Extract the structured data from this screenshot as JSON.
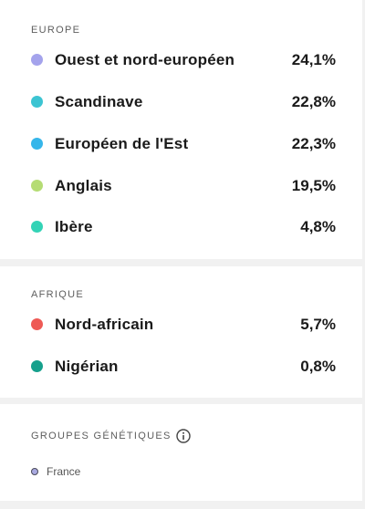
{
  "europe": {
    "title": "EUROPE",
    "items": [
      {
        "label": "Ouest et nord-européen",
        "percent": "24,1%",
        "color": "#a4a3ec"
      },
      {
        "label": "Scandinave",
        "percent": "22,8%",
        "color": "#3cc4d2"
      },
      {
        "label": "Européen de l'Est",
        "percent": "22,3%",
        "color": "#35b6ea"
      },
      {
        "label": "Anglais",
        "percent": "19,5%",
        "color": "#b5dc74"
      },
      {
        "label": "Ibère",
        "percent": "4,8%",
        "color": "#33d3b6"
      }
    ]
  },
  "afrique": {
    "title": "AFRIQUE",
    "items": [
      {
        "label": "Nord-africain",
        "percent": "5,7%",
        "color": "#ee5a55"
      },
      {
        "label": "Nigérian",
        "percent": "0,8%",
        "color": "#16a08c"
      }
    ]
  },
  "groupes": {
    "title": "GROUPES GÉNÉTIQUES",
    "info_icon": "info-icon",
    "items": [
      {
        "label": "France",
        "color": "#a9a9e0"
      }
    ]
  }
}
